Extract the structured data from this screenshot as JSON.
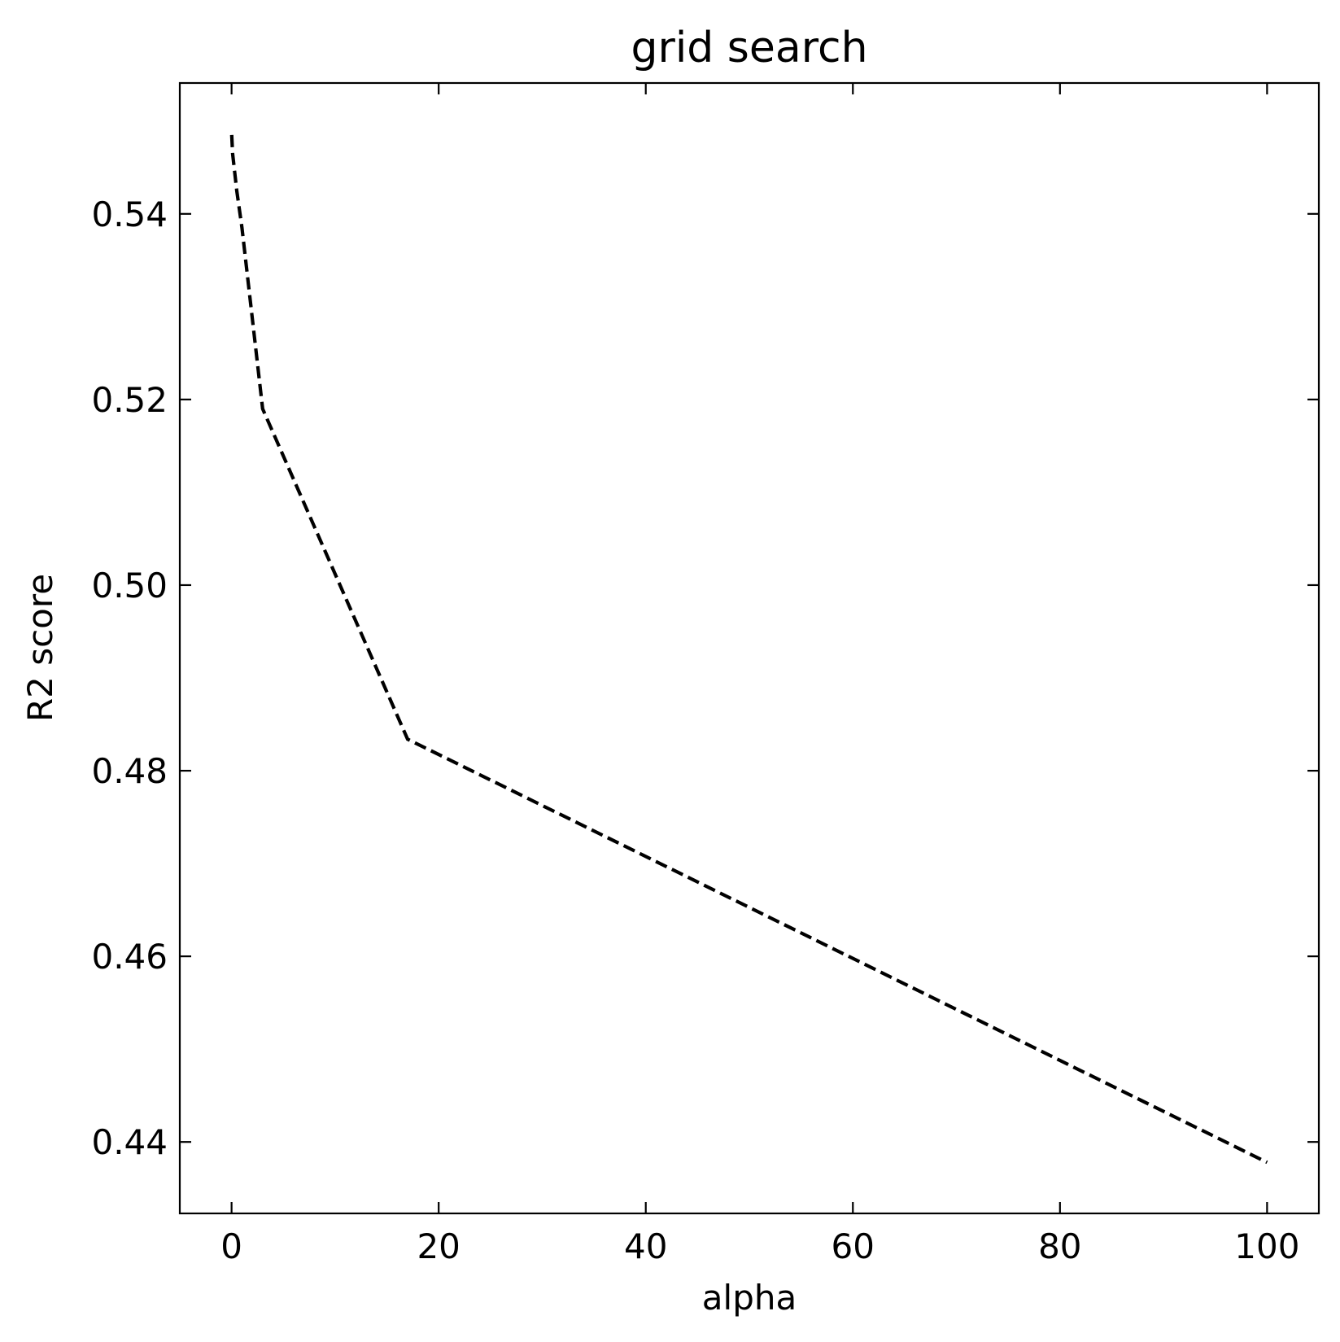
{
  "chart_data": {
    "type": "line",
    "title": "grid search",
    "xlabel": "alpha",
    "ylabel": "R2 score",
    "xlim": [
      -5,
      105
    ],
    "ylim": [
      0.4323,
      0.5541
    ],
    "xticks": [
      0,
      20,
      40,
      60,
      80,
      100
    ],
    "xtick_labels": [
      "0",
      "20",
      "40",
      "60",
      "80",
      "100"
    ],
    "yticks": [
      0.44,
      0.46,
      0.48,
      0.5,
      0.52,
      0.54
    ],
    "ytick_labels": [
      "0.44",
      "0.46",
      "0.48",
      "0.50",
      "0.52",
      "0.54"
    ],
    "grid": false,
    "ticks_direction": "in",
    "ticks_mirrored": true,
    "series": [
      {
        "line_style": "dashed",
        "color": "#000000",
        "x": [
          0.01,
          0.1,
          0.5,
          1,
          3,
          17,
          100
        ],
        "y": [
          0.5485,
          0.5465,
          0.5425,
          0.5385,
          0.519,
          0.4834,
          0.4378
        ]
      }
    ]
  }
}
